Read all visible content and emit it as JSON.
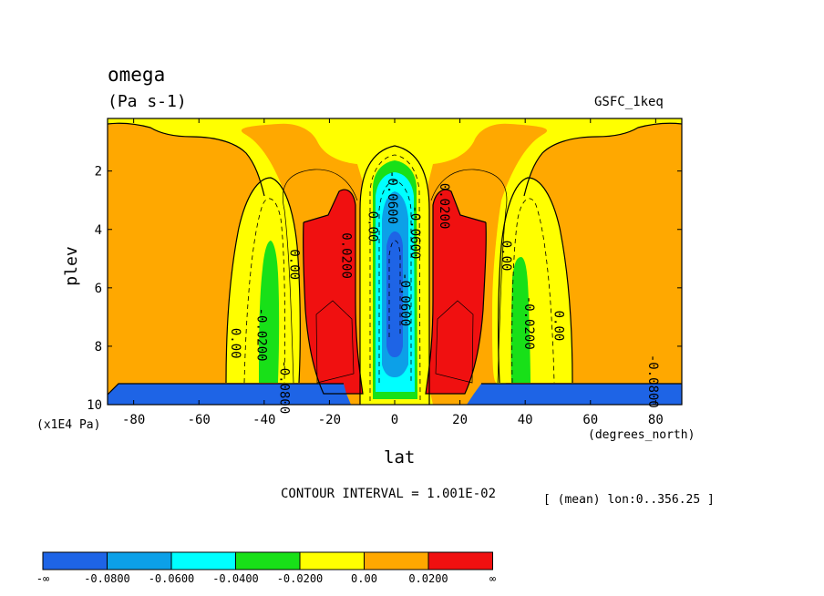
{
  "chart_data": {
    "type": "heatmap",
    "subtype": "filled-contour (latitude-pressure cross section)",
    "title": "omega",
    "units": "(Pa s-1)",
    "dataset": "GSFC_1keq",
    "xlabel": "lat",
    "x_units": "(degrees_north)",
    "ylabel": "plev",
    "y_scale_note": "(x1E4 Pa)",
    "xlim": [
      -88,
      88
    ],
    "ylim": [
      10,
      0.2
    ],
    "x_ticks": [
      -80,
      -60,
      -40,
      -20,
      0,
      20,
      40,
      60,
      80
    ],
    "x_tick_labels": [
      "-80",
      "-60",
      "-40",
      "-20",
      "0",
      "20",
      "40",
      "60",
      "80"
    ],
    "y_ticks": [
      2,
      4,
      6,
      8,
      10
    ],
    "y_tick_labels": [
      "2",
      "4",
      "6",
      "8",
      "10"
    ],
    "contour_interval": "CONTOUR INTERVAL = 1.001E-02",
    "mean_note": "[ (mean) lon:0..356.25 ]",
    "colorbar": {
      "colors": [
        "#1e64e6",
        "#0ca0e8",
        "#00ffff",
        "#18e018",
        "#ffff00",
        "#ffa800",
        "#f01010"
      ],
      "labels": [
        "-∞",
        "-0.0800",
        "-0.0600",
        "-0.0400",
        "-0.0200",
        "0.00",
        "0.0200",
        "∞"
      ]
    },
    "contour_labels": [
      {
        "text": "0.00",
        "lat": -32,
        "plev": 5.2
      },
      {
        "text": "0.00",
        "lat": -50,
        "plev": 7.9
      },
      {
        "text": "-0.0200",
        "lat": -42,
        "plev": 7.6
      },
      {
        "text": "-0.0800",
        "lat": -35,
        "plev": 9.4
      },
      {
        "text": "0.0200",
        "lat": -16,
        "plev": 4.9
      },
      {
        "text": "0.00",
        "lat": -8,
        "plev": 3.9
      },
      {
        "text": "-0.0600",
        "lat": -2,
        "plev": 2.9
      },
      {
        "text": "-0.0600",
        "lat": 5,
        "plev": 4.1
      },
      {
        "text": "-0.0600",
        "lat": 2,
        "plev": 6.4
      },
      {
        "text": "0.0200",
        "lat": 14,
        "plev": 3.2
      },
      {
        "text": "0.00",
        "lat": 33,
        "plev": 4.9
      },
      {
        "text": "-0.0200",
        "lat": 40,
        "plev": 7.2
      },
      {
        "text": "0.00",
        "lat": 49,
        "plev": 7.3
      },
      {
        "text": "-0.0800",
        "lat": 78,
        "plev": 9.2
      }
    ]
  }
}
